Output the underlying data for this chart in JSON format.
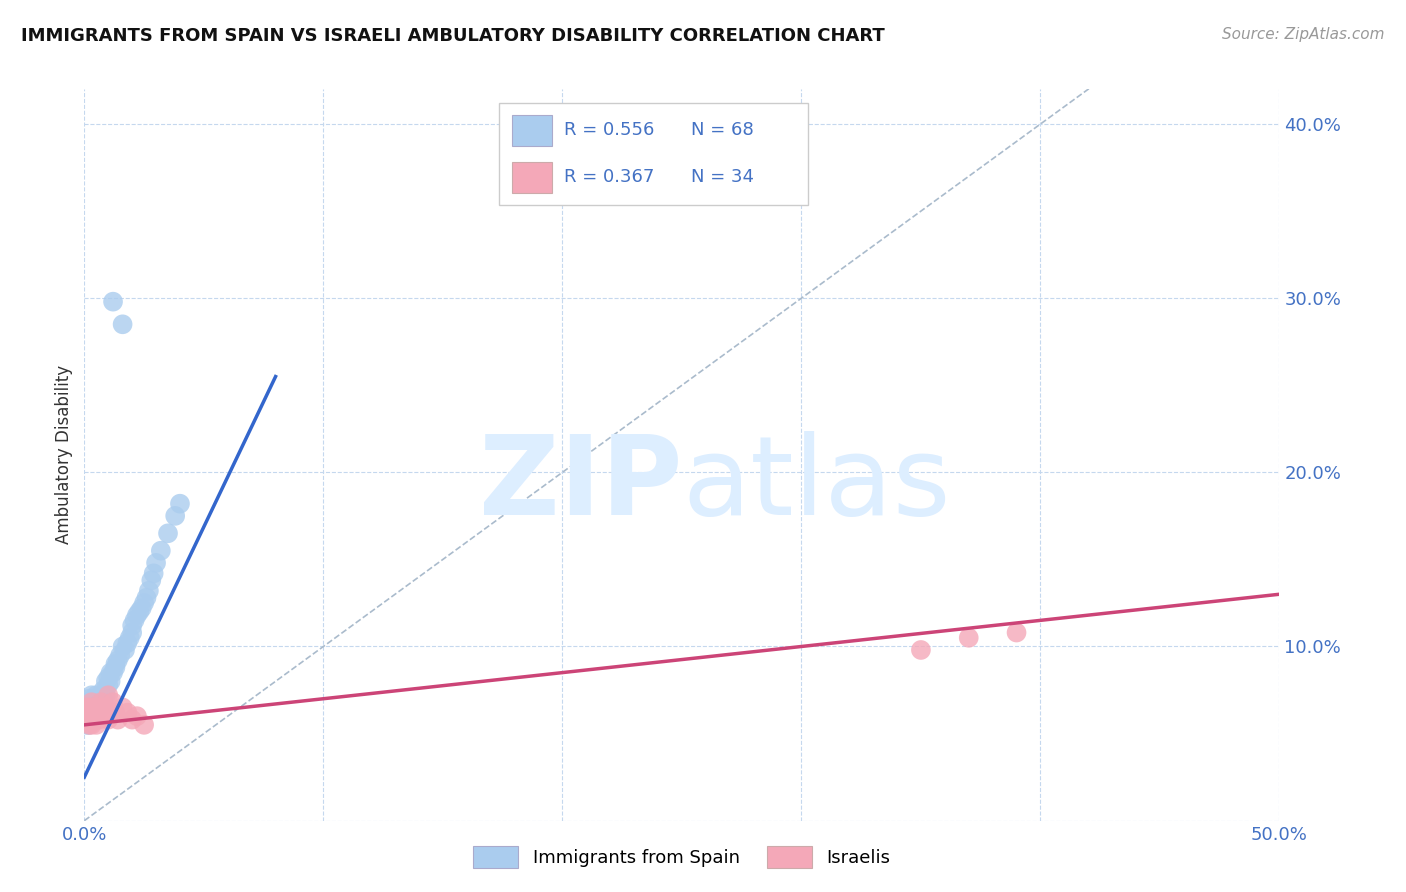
{
  "title": "IMMIGRANTS FROM SPAIN VS ISRAELI AMBULATORY DISABILITY CORRELATION CHART",
  "source": "Source: ZipAtlas.com",
  "ylabel": "Ambulatory Disability",
  "xlim": [
    0.0,
    0.5
  ],
  "ylim": [
    0.0,
    0.42
  ],
  "xticks": [
    0.0,
    0.1,
    0.2,
    0.3,
    0.4,
    0.5
  ],
  "xtick_labels": [
    "0.0%",
    "",
    "",
    "",
    "",
    "50.0%"
  ],
  "ytick_positions": [
    0.0,
    0.1,
    0.2,
    0.3,
    0.4
  ],
  "ytick_labels_right": [
    "",
    "10.0%",
    "20.0%",
    "30.0%",
    "40.0%"
  ],
  "r_spain": 0.556,
  "n_spain": 68,
  "r_israel": 0.367,
  "n_israel": 34,
  "color_spain": "#aaccee",
  "color_israel": "#f4a8b8",
  "line_color_spain": "#3366cc",
  "line_color_israel": "#cc4477",
  "diag_color": "#aabbcc",
  "background_color": "#ffffff",
  "grid_color": "#c5d8ee",
  "watermark_color": "#ddeeff",
  "spain_x": [
    0.001,
    0.001,
    0.001,
    0.001,
    0.001,
    0.002,
    0.002,
    0.002,
    0.002,
    0.002,
    0.002,
    0.002,
    0.002,
    0.003,
    0.003,
    0.003,
    0.003,
    0.003,
    0.003,
    0.004,
    0.004,
    0.004,
    0.004,
    0.005,
    0.005,
    0.005,
    0.005,
    0.006,
    0.006,
    0.006,
    0.007,
    0.007,
    0.007,
    0.008,
    0.008,
    0.009,
    0.009,
    0.01,
    0.01,
    0.011,
    0.011,
    0.012,
    0.013,
    0.013,
    0.014,
    0.015,
    0.016,
    0.017,
    0.018,
    0.019,
    0.02,
    0.02,
    0.021,
    0.022,
    0.023,
    0.024,
    0.025,
    0.026,
    0.027,
    0.028,
    0.029,
    0.03,
    0.032,
    0.035,
    0.038,
    0.04,
    0.012,
    0.016
  ],
  "spain_y": [
    0.058,
    0.063,
    0.068,
    0.055,
    0.06,
    0.062,
    0.065,
    0.068,
    0.07,
    0.058,
    0.055,
    0.06,
    0.065,
    0.062,
    0.065,
    0.068,
    0.058,
    0.072,
    0.06,
    0.065,
    0.07,
    0.058,
    0.062,
    0.068,
    0.072,
    0.062,
    0.066,
    0.068,
    0.065,
    0.07,
    0.072,
    0.065,
    0.068,
    0.07,
    0.075,
    0.072,
    0.08,
    0.078,
    0.082,
    0.08,
    0.085,
    0.085,
    0.09,
    0.088,
    0.092,
    0.095,
    0.1,
    0.098,
    0.102,
    0.105,
    0.108,
    0.112,
    0.115,
    0.118,
    0.12,
    0.122,
    0.125,
    0.128,
    0.132,
    0.138,
    0.142,
    0.148,
    0.155,
    0.165,
    0.175,
    0.182,
    0.298,
    0.285
  ],
  "israel_x": [
    0.001,
    0.001,
    0.001,
    0.002,
    0.002,
    0.002,
    0.002,
    0.003,
    0.003,
    0.003,
    0.004,
    0.004,
    0.005,
    0.005,
    0.005,
    0.006,
    0.006,
    0.007,
    0.007,
    0.008,
    0.009,
    0.01,
    0.01,
    0.012,
    0.013,
    0.014,
    0.016,
    0.018,
    0.02,
    0.022,
    0.025,
    0.37,
    0.39,
    0.35
  ],
  "israel_y": [
    0.062,
    0.058,
    0.065,
    0.06,
    0.055,
    0.058,
    0.065,
    0.055,
    0.062,
    0.068,
    0.058,
    0.065,
    0.06,
    0.055,
    0.062,
    0.058,
    0.065,
    0.06,
    0.068,
    0.062,
    0.065,
    0.058,
    0.072,
    0.068,
    0.062,
    0.058,
    0.065,
    0.062,
    0.058,
    0.06,
    0.055,
    0.105,
    0.108,
    0.098
  ],
  "spain_line_x": [
    0.0,
    0.08
  ],
  "spain_line_y": [
    0.025,
    0.255
  ],
  "israel_line_x": [
    0.0,
    0.5
  ],
  "israel_line_y": [
    0.055,
    0.13
  ]
}
